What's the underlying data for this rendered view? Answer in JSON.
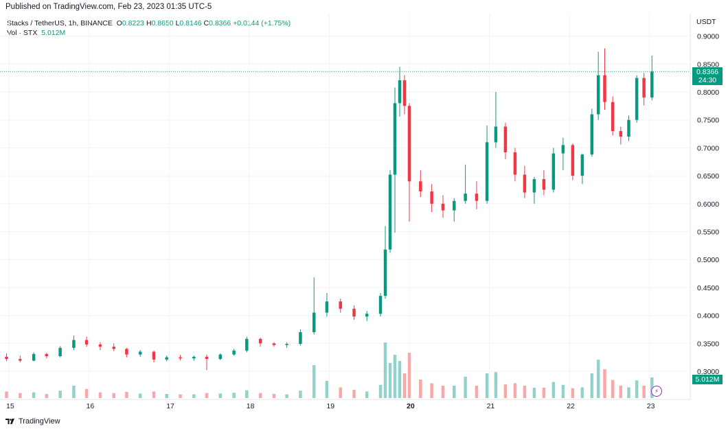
{
  "header": {
    "published": "Published on TradingView.com, Feb 23, 2023 01:35 UTC-5"
  },
  "legend": {
    "symbol": "Stacks / TetherUS, 1h, BINANCE",
    "o_label": "O",
    "o_value": "0.8223",
    "h_label": "H",
    "h_value": "0.8650",
    "l_label": "L",
    "l_value": "0.8146",
    "c_label": "C",
    "c_value": "0.8366",
    "change": "+0.0144 (+1.75%)",
    "vol_label": "Vol · STX",
    "vol_value": "5.012M"
  },
  "axis": {
    "currency": "USDT"
  },
  "price_tag": {
    "price": "0.8366",
    "countdown": "24:30"
  },
  "vol_tag": "5.012M",
  "footer": {
    "brand": "TradingView"
  },
  "colors": {
    "up": "#089981",
    "down": "#f23645",
    "up_vol": "#92d2cc",
    "down_vol": "#f7a9a7",
    "grid": "#f0f3fa"
  },
  "icons": {
    "logo": "tradingview-logo-icon",
    "alert": "lightning-bolt-icon"
  },
  "chart_data": {
    "type": "candlestick",
    "title": "Stacks / TetherUS, 1h, BINANCE",
    "xlabel": "",
    "ylabel": "USDT",
    "ylim": [
      0.27,
      0.91
    ],
    "y_ticks": [
      "0.3000",
      "0.3500",
      "0.4000",
      "0.4500",
      "0.5000",
      "0.5500",
      "0.6000",
      "0.6500",
      "0.7000",
      "0.7500",
      "0.8000",
      "0.8500",
      "0.9000"
    ],
    "x_ticks": [
      {
        "label": "15",
        "day": 15
      },
      {
        "label": "16",
        "day": 16
      },
      {
        "label": "17",
        "day": 17
      },
      {
        "label": "18",
        "day": 18
      },
      {
        "label": "19",
        "day": 19
      },
      {
        "label": "20",
        "day": 20
      },
      {
        "label": "21",
        "day": 21
      },
      {
        "label": "22",
        "day": 22
      },
      {
        "label": "23",
        "day": 23
      }
    ],
    "x_start_day": 15.0,
    "candle_hours": 4,
    "last_price": 0.8366,
    "grid": true,
    "candles": [
      {
        "t": 14.97,
        "o": 0.326,
        "h": 0.332,
        "l": 0.318,
        "c": 0.322,
        "v": 1.6
      },
      {
        "t": 15.14,
        "o": 0.322,
        "h": 0.328,
        "l": 0.316,
        "c": 0.319,
        "v": 1.2
      },
      {
        "t": 15.31,
        "o": 0.319,
        "h": 0.334,
        "l": 0.318,
        "c": 0.331,
        "v": 1.4
      },
      {
        "t": 15.47,
        "o": 0.331,
        "h": 0.333,
        "l": 0.323,
        "c": 0.327,
        "v": 1.0
      },
      {
        "t": 15.64,
        "o": 0.327,
        "h": 0.345,
        "l": 0.325,
        "c": 0.342,
        "v": 1.8
      },
      {
        "t": 15.81,
        "o": 0.342,
        "h": 0.364,
        "l": 0.338,
        "c": 0.356,
        "v": 3.0
      },
      {
        "t": 15.97,
        "o": 0.356,
        "h": 0.362,
        "l": 0.344,
        "c": 0.348,
        "v": 2.2
      },
      {
        "t": 16.14,
        "o": 0.348,
        "h": 0.352,
        "l": 0.338,
        "c": 0.344,
        "v": 1.4
      },
      {
        "t": 16.31,
        "o": 0.344,
        "h": 0.35,
        "l": 0.336,
        "c": 0.34,
        "v": 1.2
      },
      {
        "t": 16.47,
        "o": 0.34,
        "h": 0.342,
        "l": 0.325,
        "c": 0.33,
        "v": 1.5
      },
      {
        "t": 16.64,
        "o": 0.33,
        "h": 0.338,
        "l": 0.326,
        "c": 0.335,
        "v": 1.1
      },
      {
        "t": 16.81,
        "o": 0.335,
        "h": 0.337,
        "l": 0.316,
        "c": 0.321,
        "v": 1.6
      },
      {
        "t": 16.97,
        "o": 0.321,
        "h": 0.328,
        "l": 0.318,
        "c": 0.325,
        "v": 1.0
      },
      {
        "t": 17.14,
        "o": 0.325,
        "h": 0.329,
        "l": 0.32,
        "c": 0.323,
        "v": 0.9
      },
      {
        "t": 17.31,
        "o": 0.323,
        "h": 0.328,
        "l": 0.319,
        "c": 0.326,
        "v": 0.9
      },
      {
        "t": 17.47,
        "o": 0.326,
        "h": 0.33,
        "l": 0.302,
        "c": 0.322,
        "v": 1.2
      },
      {
        "t": 17.64,
        "o": 0.322,
        "h": 0.332,
        "l": 0.32,
        "c": 0.33,
        "v": 1.1
      },
      {
        "t": 17.81,
        "o": 0.33,
        "h": 0.34,
        "l": 0.328,
        "c": 0.337,
        "v": 1.3
      },
      {
        "t": 17.97,
        "o": 0.337,
        "h": 0.362,
        "l": 0.334,
        "c": 0.358,
        "v": 1.9
      },
      {
        "t": 18.14,
        "o": 0.358,
        "h": 0.36,
        "l": 0.344,
        "c": 0.35,
        "v": 1.2
      },
      {
        "t": 18.31,
        "o": 0.35,
        "h": 0.352,
        "l": 0.344,
        "c": 0.347,
        "v": 1.0
      },
      {
        "t": 18.47,
        "o": 0.347,
        "h": 0.352,
        "l": 0.342,
        "c": 0.349,
        "v": 0.9
      },
      {
        "t": 18.64,
        "o": 0.349,
        "h": 0.375,
        "l": 0.346,
        "c": 0.37,
        "v": 1.8
      },
      {
        "t": 18.81,
        "o": 0.37,
        "h": 0.468,
        "l": 0.366,
        "c": 0.405,
        "v": 8.0
      },
      {
        "t": 18.97,
        "o": 0.405,
        "h": 0.44,
        "l": 0.398,
        "c": 0.425,
        "v": 4.2
      },
      {
        "t": 19.14,
        "o": 0.425,
        "h": 0.43,
        "l": 0.405,
        "c": 0.412,
        "v": 2.6
      },
      {
        "t": 19.31,
        "o": 0.412,
        "h": 0.418,
        "l": 0.392,
        "c": 0.398,
        "v": 2.0
      },
      {
        "t": 19.47,
        "o": 0.398,
        "h": 0.408,
        "l": 0.39,
        "c": 0.403,
        "v": 1.6
      },
      {
        "t": 19.64,
        "o": 0.403,
        "h": 0.44,
        "l": 0.398,
        "c": 0.435,
        "v": 3.2
      },
      {
        "t": 19.7,
        "o": 0.435,
        "h": 0.56,
        "l": 0.43,
        "c": 0.518,
        "v": 13.5
      },
      {
        "t": 19.76,
        "o": 0.518,
        "h": 0.66,
        "l": 0.512,
        "c": 0.652,
        "v": 8.5
      },
      {
        "t": 19.82,
        "o": 0.652,
        "h": 0.808,
        "l": 0.548,
        "c": 0.78,
        "v": 10.5
      },
      {
        "t": 19.88,
        "o": 0.78,
        "h": 0.845,
        "l": 0.756,
        "c": 0.821,
        "v": 9.0
      },
      {
        "t": 19.94,
        "o": 0.821,
        "h": 0.83,
        "l": 0.76,
        "c": 0.775,
        "v": 6.0
      },
      {
        "t": 20.0,
        "o": 0.775,
        "h": 0.78,
        "l": 0.568,
        "c": 0.64,
        "v": 11.0
      },
      {
        "t": 20.14,
        "o": 0.64,
        "h": 0.66,
        "l": 0.612,
        "c": 0.622,
        "v": 4.5
      },
      {
        "t": 20.28,
        "o": 0.622,
        "h": 0.635,
        "l": 0.585,
        "c": 0.6,
        "v": 3.6
      },
      {
        "t": 20.42,
        "o": 0.6,
        "h": 0.615,
        "l": 0.575,
        "c": 0.588,
        "v": 3.0
      },
      {
        "t": 20.56,
        "o": 0.588,
        "h": 0.61,
        "l": 0.568,
        "c": 0.605,
        "v": 3.0
      },
      {
        "t": 20.7,
        "o": 0.605,
        "h": 0.67,
        "l": 0.6,
        "c": 0.618,
        "v": 5.2
      },
      {
        "t": 20.84,
        "o": 0.618,
        "h": 0.64,
        "l": 0.59,
        "c": 0.605,
        "v": 3.0
      },
      {
        "t": 20.97,
        "o": 0.605,
        "h": 0.74,
        "l": 0.6,
        "c": 0.71,
        "v": 6.0
      },
      {
        "t": 21.08,
        "o": 0.71,
        "h": 0.8,
        "l": 0.7,
        "c": 0.738,
        "v": 6.3
      },
      {
        "t": 21.2,
        "o": 0.738,
        "h": 0.745,
        "l": 0.68,
        "c": 0.692,
        "v": 3.3
      },
      {
        "t": 21.32,
        "o": 0.692,
        "h": 0.7,
        "l": 0.64,
        "c": 0.652,
        "v": 3.6
      },
      {
        "t": 21.44,
        "o": 0.652,
        "h": 0.668,
        "l": 0.61,
        "c": 0.62,
        "v": 3.0
      },
      {
        "t": 21.56,
        "o": 0.62,
        "h": 0.648,
        "l": 0.6,
        "c": 0.644,
        "v": 2.5
      },
      {
        "t": 21.68,
        "o": 0.644,
        "h": 0.66,
        "l": 0.615,
        "c": 0.625,
        "v": 2.5
      },
      {
        "t": 21.8,
        "o": 0.625,
        "h": 0.7,
        "l": 0.62,
        "c": 0.69,
        "v": 3.9
      },
      {
        "t": 21.92,
        "o": 0.69,
        "h": 0.718,
        "l": 0.66,
        "c": 0.705,
        "v": 3.2
      },
      {
        "t": 22.04,
        "o": 0.705,
        "h": 0.708,
        "l": 0.642,
        "c": 0.65,
        "v": 2.4
      },
      {
        "t": 22.16,
        "o": 0.65,
        "h": 0.69,
        "l": 0.635,
        "c": 0.688,
        "v": 2.6
      },
      {
        "t": 22.28,
        "o": 0.688,
        "h": 0.77,
        "l": 0.684,
        "c": 0.76,
        "v": 6.0
      },
      {
        "t": 22.36,
        "o": 0.76,
        "h": 0.872,
        "l": 0.75,
        "c": 0.83,
        "v": 9.3
      },
      {
        "t": 22.44,
        "o": 0.83,
        "h": 0.878,
        "l": 0.768,
        "c": 0.782,
        "v": 7.0
      },
      {
        "t": 22.54,
        "o": 0.782,
        "h": 0.792,
        "l": 0.722,
        "c": 0.73,
        "v": 4.4
      },
      {
        "t": 22.64,
        "o": 0.73,
        "h": 0.738,
        "l": 0.706,
        "c": 0.72,
        "v": 3.0
      },
      {
        "t": 22.74,
        "o": 0.72,
        "h": 0.758,
        "l": 0.712,
        "c": 0.75,
        "v": 2.6
      },
      {
        "t": 22.84,
        "o": 0.75,
        "h": 0.83,
        "l": 0.745,
        "c": 0.825,
        "v": 4.3
      },
      {
        "t": 22.93,
        "o": 0.825,
        "h": 0.834,
        "l": 0.776,
        "c": 0.79,
        "v": 3.0
      },
      {
        "t": 23.03,
        "o": 0.79,
        "h": 0.865,
        "l": 0.785,
        "c": 0.8366,
        "v": 5.0
      }
    ]
  }
}
